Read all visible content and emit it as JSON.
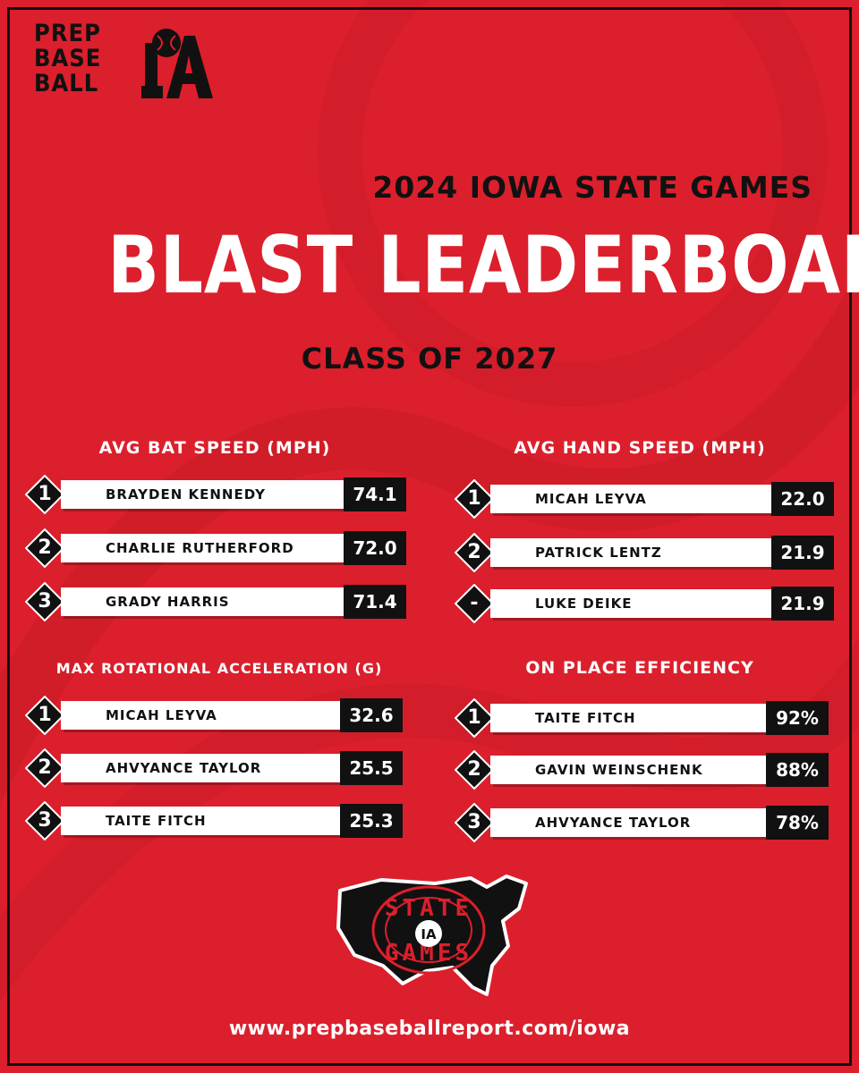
{
  "logo": {
    "lines": [
      "PREP",
      "BASE",
      "BALL"
    ],
    "mark": "IA"
  },
  "header": {
    "event": "2024 IOWA STATE GAMES",
    "title": "BLAST LEADERBOARD",
    "class_label": "CLASS OF 2027"
  },
  "boards": [
    {
      "heading": "AVG BAT SPEED (MPH)",
      "rows": [
        {
          "rank": "1",
          "name": "BRAYDEN KENNEDY",
          "value": "74.1"
        },
        {
          "rank": "2",
          "name": "CHARLIE RUTHERFORD",
          "value": "72.0"
        },
        {
          "rank": "3",
          "name": "GRADY HARRIS",
          "value": "71.4"
        }
      ]
    },
    {
      "heading": "AVG HAND SPEED (MPH)",
      "rows": [
        {
          "rank": "1",
          "name": "MICAH LEYVA",
          "value": "22.0"
        },
        {
          "rank": "2",
          "name": "PATRICK LENTZ",
          "value": "21.9"
        },
        {
          "rank": "-",
          "name": "LUKE DEIKE",
          "value": "21.9"
        }
      ]
    },
    {
      "heading": "MAX ROTATIONAL ACCELERATION (G)",
      "rows": [
        {
          "rank": "1",
          "name": "MICAH LEYVA",
          "value": "32.6"
        },
        {
          "rank": "2",
          "name": "AHVYANCE TAYLOR",
          "value": "25.5"
        },
        {
          "rank": "3",
          "name": "TAITE FITCH",
          "value": "25.3"
        }
      ]
    },
    {
      "heading": "ON PLACE EFFICIENCY",
      "rows": [
        {
          "rank": "1",
          "name": "TAITE FITCH",
          "value": "92%"
        },
        {
          "rank": "2",
          "name": "GAVIN WEINSCHENK",
          "value": "88%"
        },
        {
          "rank": "3",
          "name": "AHVYANCE TAYLOR",
          "value": "78%"
        }
      ]
    }
  ],
  "badge": {
    "letters": [
      "STATE",
      "GAMES"
    ],
    "mark": "IA"
  },
  "footer": {
    "url": "www.prepbaseballreport.com/iowa"
  },
  "colors": {
    "background": "#dc1f2c",
    "dark": "#111111",
    "light": "#ffffff"
  }
}
